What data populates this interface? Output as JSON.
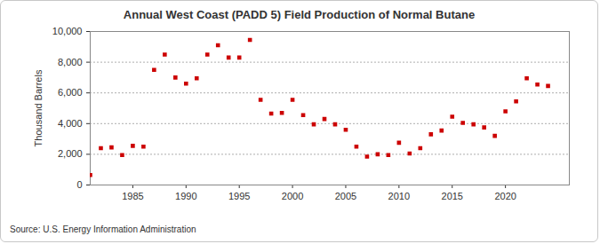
{
  "chart_data": {
    "type": "scatter",
    "title": "Annual West Coast (PADD 5) Field Production of Normal Butane",
    "y_label": "Thousand Barrels",
    "source": "Source: U.S. Energy Information Administration",
    "x": [
      1981,
      1982,
      1983,
      1984,
      1985,
      1986,
      1987,
      1988,
      1989,
      1990,
      1991,
      1992,
      1993,
      1994,
      1995,
      1996,
      1997,
      1998,
      1999,
      2000,
      2001,
      2002,
      2003,
      2004,
      2005,
      2006,
      2007,
      2008,
      2009,
      2010,
      2011,
      2012,
      2013,
      2014,
      2015,
      2016,
      2017,
      2018,
      2019,
      2020,
      2021,
      2022,
      2023,
      2024
    ],
    "values": [
      650,
      2400,
      2450,
      1950,
      2550,
      2500,
      7500,
      8500,
      7000,
      6600,
      6950,
      8500,
      9100,
      8300,
      8300,
      9450,
      5550,
      4650,
      4700,
      5550,
      4550,
      3950,
      4300,
      3950,
      3600,
      2500,
      1850,
      2000,
      1950,
      2750,
      2050,
      2400,
      3300,
      3550,
      4450,
      4050,
      3950,
      3750,
      3200,
      4800,
      5450,
      6950,
      6550,
      6450
    ],
    "color": "#cc0000",
    "marker": "square",
    "xlim": [
      1981,
      2026
    ],
    "xticks": [
      1985,
      1990,
      1995,
      2000,
      2005,
      2010,
      2015,
      2020
    ],
    "ylim": [
      0,
      10000
    ],
    "yticks": [
      0,
      {
        "value": 2000,
        "label": "2,000"
      },
      {
        "value": 4000,
        "label": "4,000"
      },
      {
        "value": 6000,
        "label": "6,000"
      },
      {
        "value": 8000,
        "label": "8,000"
      },
      {
        "value": 10000,
        "label": "10,000"
      }
    ],
    "grid": true
  }
}
